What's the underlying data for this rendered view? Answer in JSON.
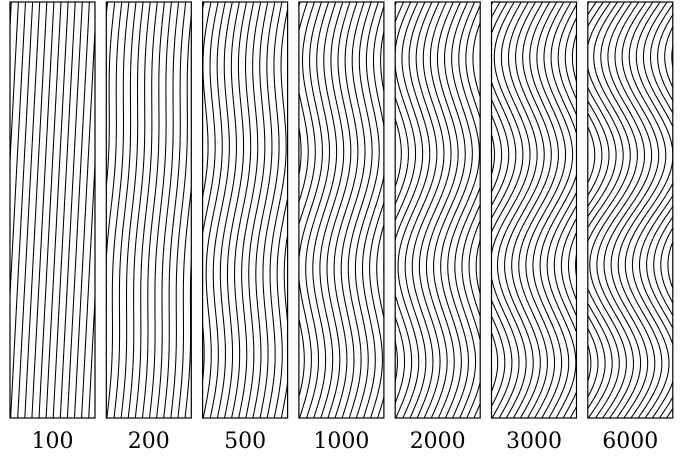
{
  "figure": {
    "panels": [
      {
        "label": "100"
      },
      {
        "label": "200"
      },
      {
        "label": "500"
      },
      {
        "label": "1000"
      },
      {
        "label": "2000"
      },
      {
        "label": "3000"
      },
      {
        "label": "6000"
      }
    ]
  }
}
